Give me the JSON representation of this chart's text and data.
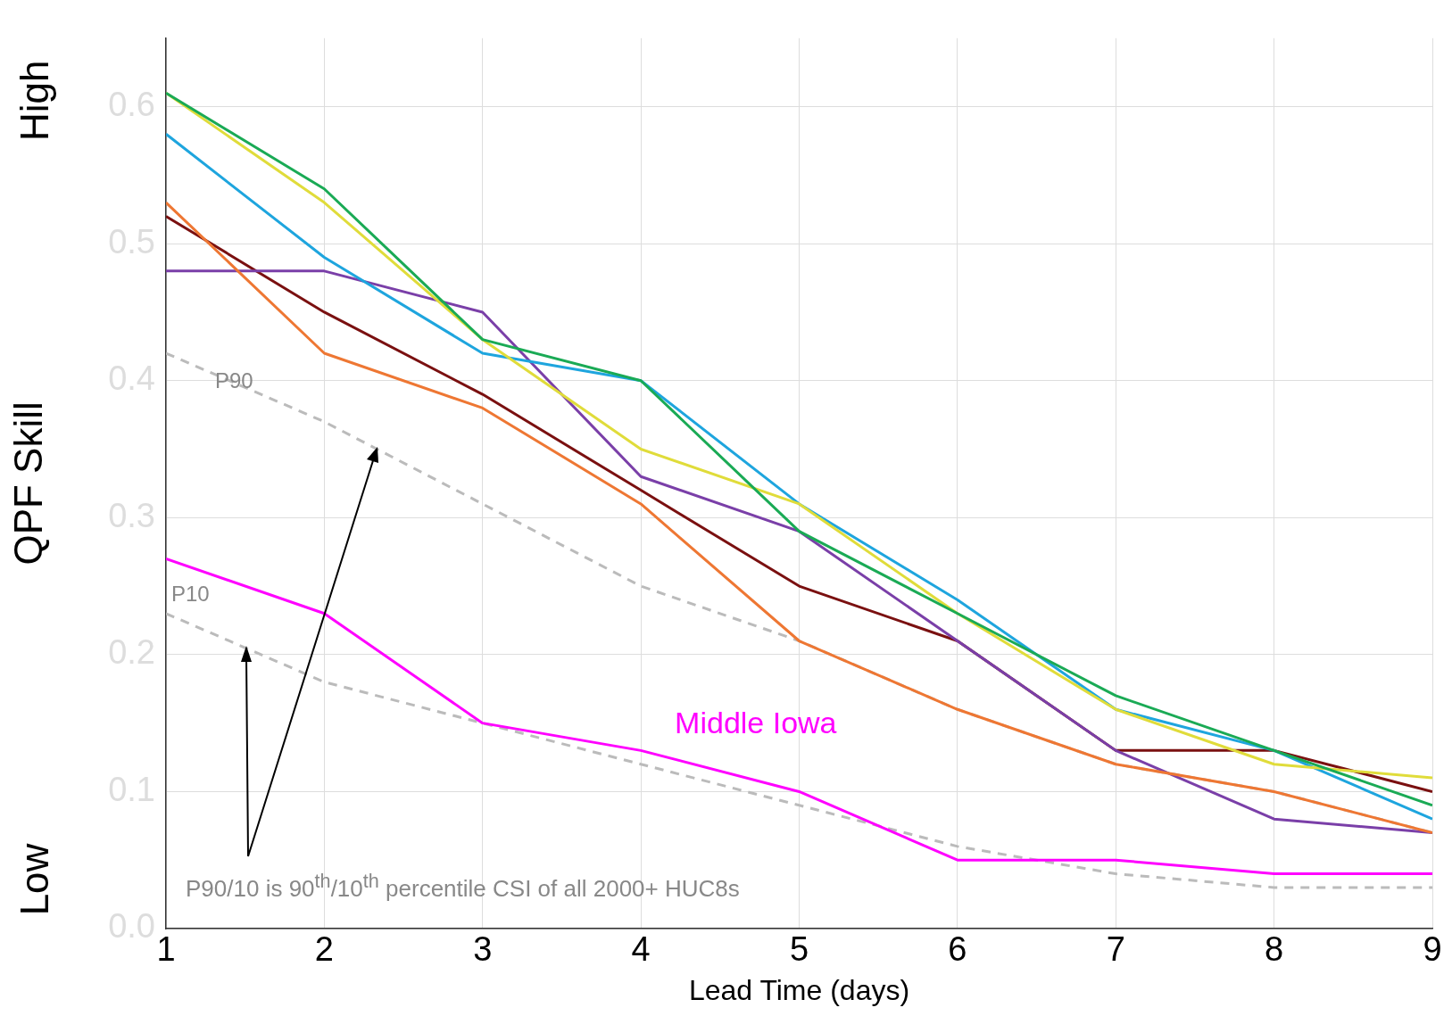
{
  "chart_data": {
    "type": "line",
    "xlabel": "Lead Time (days)",
    "ylabel": "QPF Skill",
    "x": [
      1,
      2,
      3,
      4,
      5,
      6,
      7,
      8,
      9
    ],
    "xlim": [
      1,
      9
    ],
    "xticks": [
      1,
      2,
      3,
      4,
      5,
      6,
      7,
      8,
      9
    ],
    "ylim": [
      0,
      0.65
    ],
    "yticks": [
      {
        "value": 0,
        "label": "0.0"
      },
      {
        "value": 0.1,
        "label": "0.1"
      },
      {
        "value": 0.2,
        "label": "0.2"
      },
      {
        "value": 0.3,
        "label": "0.3"
      },
      {
        "value": 0.4,
        "label": "0.4"
      },
      {
        "value": 0.5,
        "label": "0.5"
      },
      {
        "value": 0.6,
        "label": "0.6"
      }
    ],
    "grid": true,
    "legend": false,
    "marker": "none",
    "series": [
      {
        "color": "#1aaa55",
        "values": [
          0.61,
          0.54,
          0.43,
          0.4,
          0.29,
          0.23,
          0.17,
          0.13,
          0.09
        ]
      },
      {
        "color": "#e0dc3a",
        "values": [
          0.61,
          0.53,
          0.43,
          0.35,
          0.31,
          0.23,
          0.16,
          0.12,
          0.11
        ]
      },
      {
        "color": "#1ea5de",
        "values": [
          0.58,
          0.49,
          0.42,
          0.4,
          0.31,
          0.24,
          0.16,
          0.13,
          0.08
        ]
      },
      {
        "color": "#ee7733",
        "values": [
          0.53,
          0.42,
          0.38,
          0.31,
          0.21,
          0.16,
          0.12,
          0.1,
          0.07
        ]
      },
      {
        "color": "#7a3fa8",
        "values": [
          0.48,
          0.48,
          0.45,
          0.33,
          0.29,
          0.21,
          0.13,
          0.08,
          0.07
        ]
      },
      {
        "color": "#7a1010",
        "values": [
          0.52,
          0.45,
          0.39,
          0.32,
          0.25,
          0.21,
          0.13,
          0.13,
          0.1
        ]
      },
      {
        "name": "Middle Iowa",
        "color": "#ff00ff",
        "values": [
          0.27,
          0.23,
          0.15,
          0.13,
          0.1,
          0.05,
          0.05,
          0.04,
          0.04
        ]
      },
      {
        "name": "P90",
        "color": "#bbbbbb",
        "line_style": "dashed",
        "values": [
          0.42,
          0.37,
          0.31,
          0.25,
          0.21,
          0.16,
          0.12,
          0.1,
          0.07
        ]
      },
      {
        "name": "P10",
        "color": "#bbbbbb",
        "line_style": "dashed",
        "values": [
          0.23,
          0.18,
          0.15,
          0.12,
          0.09,
          0.06,
          0.04,
          0.03,
          0.03
        ]
      }
    ],
    "annotations": [
      "High",
      "Low",
      "P90/10 is 90$^{th}$/10$^{th}$ percentile CSI of all 2000+ HUC8s"
    ]
  }
}
